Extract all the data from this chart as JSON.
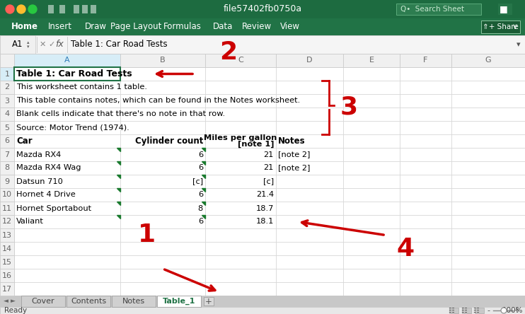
{
  "title_bar_color": "#1e7145",
  "ribbon_color": "#217346",
  "filename": "file57402fb0750a",
  "active_tab": "Table_1",
  "tabs": [
    "Cover",
    "Contents",
    "Notes",
    "Table_1"
  ],
  "formula_bar_text": "Table 1: Car Road Tests",
  "cell_ref": "A1",
  "sheet_title": "Table 1: Car Road Tests",
  "meta_rows": [
    "This worksheet contains 1 table.",
    "This table contains notes, which can be found in the Notes worksheet.",
    "Blank cells indicate that there's no note in that row.",
    "Source: Motor Trend (1974)."
  ],
  "table_data": [
    [
      "Mazda RX4",
      "6",
      "21",
      "[note 2]"
    ],
    [
      "Mazda RX4 Wag",
      "6",
      "21",
      "[note 2]"
    ],
    [
      "Datsun 710",
      "[c]",
      "[c]",
      ""
    ],
    [
      "Hornet 4 Drive",
      "6",
      "21.4",
      ""
    ],
    [
      "Hornet Sportabout",
      "8",
      "18.7",
      ""
    ],
    [
      "Valiant",
      "6",
      "18.1",
      ""
    ]
  ],
  "annotation_color": "#cc0000",
  "green_tri_color": "#1a7a2e"
}
